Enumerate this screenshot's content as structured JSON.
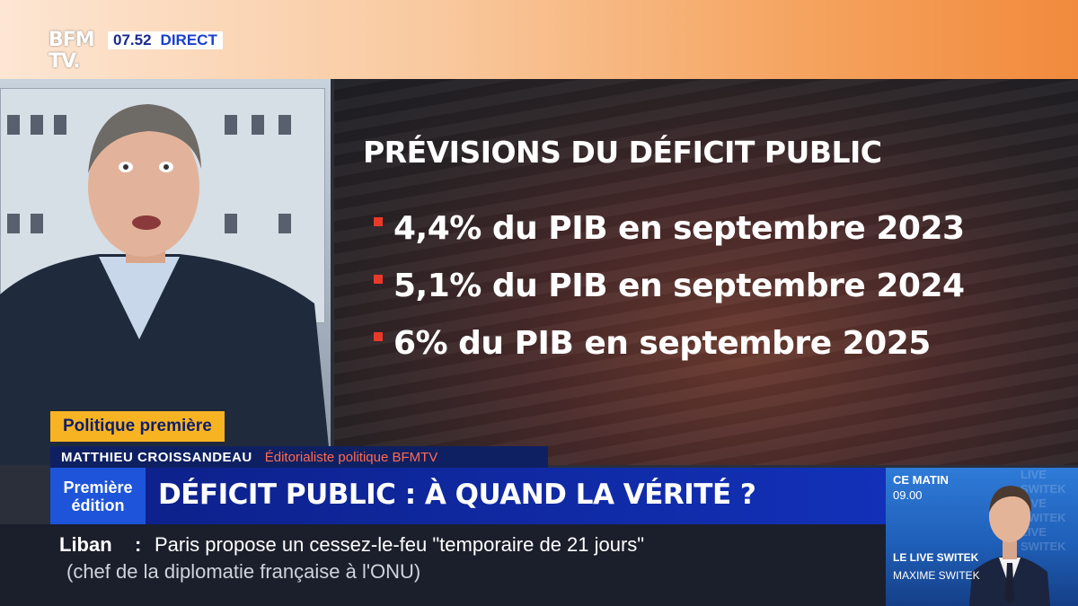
{
  "channel": {
    "logo_line1": "BFM",
    "logo_line2": "TV.",
    "time": "07.52",
    "live_label": "DIRECT"
  },
  "graphic": {
    "title": "PRÉVISIONS DU DÉFICIT PUBLIC",
    "bullets": [
      "4,4% du PIB en septembre 2023",
      "5,1% du PIB en septembre 2024",
      "6% du PIB en septembre 2025"
    ],
    "bullet_color": "#e83a2a"
  },
  "lower_third": {
    "show_tag": "Politique première",
    "speaker_name": "MATTHIEU CROISSANDEAU",
    "speaker_role": "Éditorialiste politique BFMTV",
    "edition_line1": "Première",
    "edition_line2": "édition",
    "headline": "DÉFICIT PUBLIC : À QUAND LA VÉRITÉ ?"
  },
  "ticker": {
    "topic": "Liban",
    "colon": ":",
    "line1": "Paris propose un cessez-le-feu \"temporaire de 21 jours\"",
    "line2": "(chef de la diplomatie française à l'ONU)"
  },
  "promo": {
    "label": "CE MATIN",
    "time": "09.00",
    "show": "LE LIVE SWITEK",
    "host": "MAXIME SWITEK",
    "background_text": "LIVE SWITEK LIVE SWITEK LIVE SWITEK"
  },
  "colors": {
    "accent_orange": "#f18a3c",
    "tag_yellow": "#f8b323",
    "navy": "#0d1f86",
    "edition_blue": "#1e54d9"
  }
}
